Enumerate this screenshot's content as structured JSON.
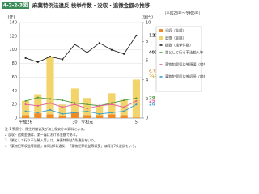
{
  "chart_data": {
    "type": "combo",
    "figure_label": "4-2-2-3図",
    "title": "麻薬特例法違反 検挙件数・没収・追徴金額の推移",
    "subtitle": "（平成26年～令和5年）",
    "y_label": "(件)",
    "y2_label": "(億円)",
    "categories": [
      "平成26",
      null,
      null,
      null,
      "30",
      "令和元",
      null,
      null,
      null,
      "5"
    ],
    "ylim": [
      0,
      140
    ],
    "yticks": [
      0,
      20,
      40,
      60,
      80,
      100,
      120,
      140
    ],
    "y2lim": [
      0,
      10
    ],
    "y2ticks": [
      0,
      2,
      4,
      6,
      8,
      10
    ],
    "grid": true,
    "series": [
      {
        "name": "没収（金額）",
        "kind": "bar",
        "axis": "y2",
        "color": "#f08a24",
        "values": [
          0.3,
          0.5,
          0.4,
          0.2,
          0.6,
          0.3,
          0.3,
          0.4,
          0.3,
          0.06795
        ],
        "value_labels": [
          null,
          null,
          null,
          null,
          null,
          null,
          null,
          null,
          null,
          "6,795千円"
        ]
      },
      {
        "name": "追徴（金額）",
        "kind": "bar",
        "axis": "y2",
        "color": "#f3d46a",
        "values": [
          1.5,
          2.0,
          6.0,
          1.2,
          2.5,
          1.8,
          1.0,
          2.2,
          1.6,
          3.96144
        ],
        "value_labels": [
          null,
          null,
          null,
          null,
          null,
          null,
          null,
          null,
          null,
          "396,144千円"
        ]
      },
      {
        "name": "総数（検挙件数）",
        "kind": "line",
        "color": "#222222",
        "values": [
          88,
          82,
          90,
          86,
          108,
          96,
          110,
          100,
          94,
          121
        ]
      },
      {
        "name": "業として行う不法輸入等（検挙件数）",
        "kind": "line",
        "color": "#4a9a3a",
        "values": [
          25,
          30,
          28,
          26,
          22,
          20,
          18,
          22,
          26,
          29
        ]
      },
      {
        "name": "薬物犯罪収益等隠匿（検挙件数）",
        "kind": "line",
        "color": "#e0609a",
        "values": [
          20,
          18,
          22,
          16,
          20,
          14,
          18,
          20,
          16,
          25
        ]
      },
      {
        "name": "薬物犯罪収益等収受（検挙件数）",
        "kind": "line",
        "color": "#3aa0c8",
        "values": [
          10,
          8,
          12,
          6,
          8,
          10,
          6,
          8,
          10,
          20
        ]
      }
    ],
    "total_label": "402,939千円",
    "notes": [
      "注 1 警察庁、厚生労働省及び海上保安庁の資料による。",
      "2 没収・追徴金額は、第一審における金額である。",
      "3 「業として行う不法輸入等」は、麻薬特例法5条違反をいう。",
      "4 「薬物犯罪収益等隠匿」は同法6条違反、「薬物犯罪収益等収受」は同法7条違反をいう。"
    ]
  }
}
